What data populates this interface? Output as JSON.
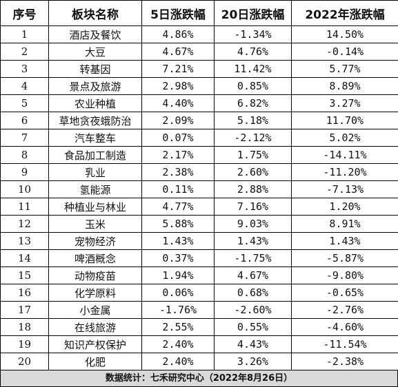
{
  "headers": [
    "序号",
    "板块名称",
    "5日涨跌幅",
    "20日涨跌幅",
    "2022年涨跌幅"
  ],
  "rows": [
    [
      "1",
      "酒店及餐饮",
      "4.86%",
      "-1.34%",
      "14.50%"
    ],
    [
      "2",
      "大豆",
      "4.67%",
      "4.76%",
      "-0.14%"
    ],
    [
      "3",
      "转基因",
      "7.21%",
      "11.42%",
      "5.77%"
    ],
    [
      "4",
      "景点及旅游",
      "2.98%",
      "0.85%",
      "8.89%"
    ],
    [
      "5",
      "农业种植",
      "4.40%",
      "6.82%",
      "3.27%"
    ],
    [
      "6",
      "草地贪夜蛾防治",
      "2.09%",
      "5.18%",
      "11.70%"
    ],
    [
      "7",
      "汽车整车",
      "0.07%",
      "-2.12%",
      "5.02%"
    ],
    [
      "8",
      "食品加工制造",
      "2.17%",
      "1.75%",
      "-14.11%"
    ],
    [
      "9",
      "乳业",
      "2.38%",
      "2.60%",
      "-11.20%"
    ],
    [
      "10",
      "氢能源",
      "0.11%",
      "2.88%",
      "-7.13%"
    ],
    [
      "11",
      "种植业与林业",
      "4.77%",
      "7.16%",
      "1.20%"
    ],
    [
      "12",
      "玉米",
      "5.88%",
      "9.03%",
      "8.91%"
    ],
    [
      "13",
      "宠物经济",
      "1.43%",
      "1.43%",
      "1.43%"
    ],
    [
      "14",
      "啤酒概念",
      "0.37%",
      "-1.75%",
      "-5.87%"
    ],
    [
      "15",
      "动物疫苗",
      "1.94%",
      "4.67%",
      "-9.80%"
    ],
    [
      "16",
      "化学原料",
      "0.06%",
      "0.68%",
      "-0.65%"
    ],
    [
      "17",
      "小金属",
      "-1.76%",
      "-2.60%",
      "-2.76%"
    ],
    [
      "18",
      "在线旅游",
      "2.55%",
      "0.55%",
      "-4.60%"
    ],
    [
      "19",
      "知识产权保护",
      "2.40%",
      "4.43%",
      "-11.54%"
    ],
    [
      "20",
      "化肥",
      "2.40%",
      "3.26%",
      "-2.38%"
    ]
  ],
  "footer": "数据统计：七禾研究中心（2022年8月26日）"
}
